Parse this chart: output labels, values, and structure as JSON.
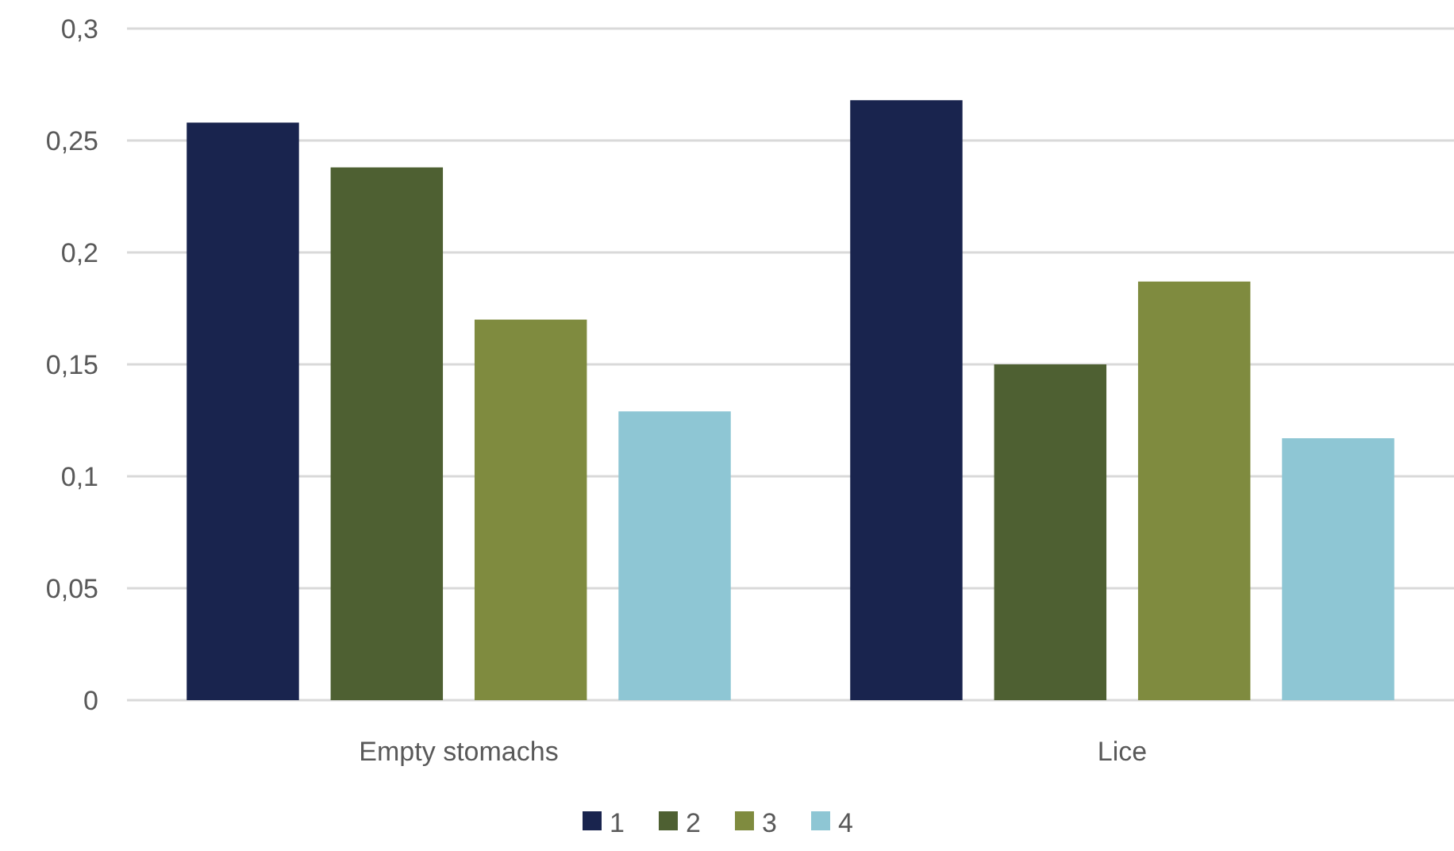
{
  "chart_data": {
    "type": "bar",
    "categories": [
      "Empty stomachs",
      "Lice"
    ],
    "series": [
      {
        "name": "1",
        "color": "#19244e",
        "values": [
          0.258,
          0.268
        ]
      },
      {
        "name": "2",
        "color": "#4e6032",
        "values": [
          0.238,
          0.15
        ]
      },
      {
        "name": "3",
        "color": "#7f8b3f",
        "values": [
          0.17,
          0.187
        ]
      },
      {
        "name": "4",
        "color": "#8ec6d4",
        "values": [
          0.129,
          0.117
        ]
      }
    ],
    "ylim": [
      0,
      0.3
    ],
    "yticks": [
      {
        "value": 0,
        "label": "0"
      },
      {
        "value": 0.05,
        "label": "0,05"
      },
      {
        "value": 0.1,
        "label": "0,1"
      },
      {
        "value": 0.15,
        "label": "0,15"
      },
      {
        "value": 0.2,
        "label": "0,2"
      },
      {
        "value": 0.25,
        "label": "0,25"
      },
      {
        "value": 0.3,
        "label": "0,3"
      }
    ],
    "grid": "y",
    "legend": "bottom"
  }
}
